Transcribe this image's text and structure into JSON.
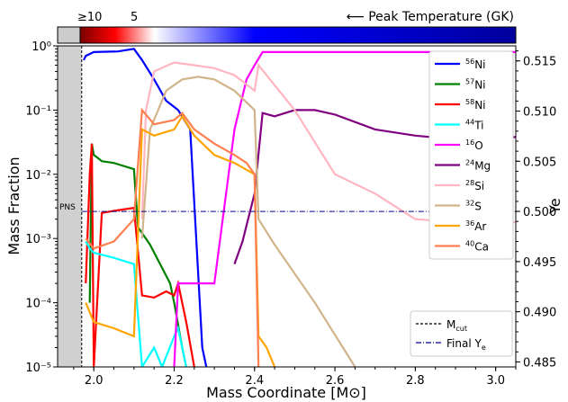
{
  "chart_data": {
    "type": "line",
    "colorbar": {
      "label_text": "⟵ Peak Temperature (GK)",
      "ticks": [
        "≥10",
        "5"
      ],
      "colors": [
        "#7a0000",
        "#ff0000",
        "#ffffff",
        "#0000ff",
        "#00009c"
      ]
    },
    "xlabel": "Mass Coordinate [M⊙]",
    "ylabel": "Mass Fraction",
    "y2label": "Ye",
    "xlim": [
      1.91,
      3.05
    ],
    "ylim": [
      1e-05,
      1
    ],
    "y2lim": [
      0.4845,
      0.5165
    ],
    "yscale": "log",
    "xticks": [
      "2.0",
      "2.2",
      "2.4",
      "2.6",
      "2.8",
      "3.0"
    ],
    "yticks": [
      "10⁻⁵",
      "10⁻⁴",
      "10⁻³",
      "10⁻²",
      "10⁻¹",
      "10⁰"
    ],
    "y2ticks": [
      "0.485",
      "0.490",
      "0.495",
      "0.500",
      "0.505",
      "0.510",
      "0.515"
    ],
    "pns_label": "PNS",
    "pns_region": [
      1.91,
      1.97
    ],
    "mcut": 1.97,
    "final_ye": 0.5,
    "legend_placement": "upper-right",
    "series": [
      {
        "name": "56Ni",
        "sup": "56",
        "el": "Ni",
        "color": "#0000ff",
        "x": [
          1.975,
          1.98,
          2.0,
          2.06,
          2.1,
          2.12,
          2.15,
          2.18,
          2.21,
          2.24,
          2.255,
          2.27,
          2.28
        ],
        "y": [
          0.6,
          0.7,
          0.8,
          0.82,
          0.9,
          0.6,
          0.3,
          0.14,
          0.1,
          0.05,
          0.001,
          2e-05,
          1e-05
        ]
      },
      {
        "name": "57Ni",
        "sup": "57",
        "el": "Ni",
        "color": "#008000",
        "x": [
          1.99,
          1.995,
          2.0,
          2.01,
          2.02,
          2.05,
          2.1,
          2.11,
          2.14,
          2.19,
          2.2,
          2.22,
          2.23
        ],
        "y": [
          0.0001,
          0.03,
          0.02,
          0.018,
          0.016,
          0.015,
          0.012,
          0.0015,
          0.0008,
          0.0002,
          0.0001,
          2e-05,
          1e-05
        ]
      },
      {
        "name": "58Ni",
        "sup": "58",
        "el": "Ni",
        "color": "#ff0000",
        "x": [
          1.98,
          1.99,
          1.995,
          2.0,
          2.02,
          2.05,
          2.1,
          2.12,
          2.15,
          2.18,
          2.2,
          2.21,
          2.23,
          2.25
        ],
        "y": [
          0.0002,
          0.01,
          0.03,
          1e-05,
          0.0025,
          0.0027,
          0.003,
          0.00013,
          0.00012,
          0.00015,
          0.00013,
          0.0002,
          5e-05,
          1e-05
        ]
      },
      {
        "name": "44Ti",
        "sup": "44",
        "el": "Ti",
        "color": "#00ffff",
        "x": [
          1.98,
          1.99,
          2.0,
          2.05,
          2.1,
          2.12,
          2.15,
          2.17,
          2.2,
          2.21,
          2.23
        ],
        "y": [
          0.0009,
          0.0007,
          0.0006,
          0.0005,
          0.0004,
          1e-05,
          2e-05,
          1e-05,
          3e-05,
          4e-05,
          1e-05
        ]
      },
      {
        "name": "16O",
        "sup": "16",
        "el": "O",
        "color": "#ff00ff",
        "x": [
          2.2,
          2.21,
          2.25,
          2.3,
          2.35,
          2.38,
          2.4,
          2.42,
          2.5,
          2.6,
          2.8,
          3.05
        ],
        "y": [
          1e-05,
          0.0002,
          0.0002,
          0.0002,
          0.05,
          0.3,
          0.5,
          0.8,
          0.8,
          0.8,
          0.8,
          0.8
        ]
      },
      {
        "name": "24Mg",
        "sup": "24",
        "el": "Mg",
        "color": "#800080",
        "x": [
          2.35,
          2.37,
          2.4,
          2.42,
          2.45,
          2.5,
          2.55,
          2.6,
          2.7,
          2.8,
          2.9,
          3.05
        ],
        "y": [
          0.0004,
          0.0009,
          0.005,
          0.09,
          0.08,
          0.1,
          0.1,
          0.085,
          0.05,
          0.04,
          0.035,
          0.038
        ]
      },
      {
        "name": "28Si",
        "sup": "28",
        "el": "Si",
        "color": "#ffb6c1",
        "x": [
          2.12,
          2.13,
          2.15,
          2.2,
          2.25,
          2.3,
          2.35,
          2.4,
          2.41,
          2.5,
          2.6,
          2.7,
          2.8,
          2.9,
          3.05
        ],
        "y": [
          0.002,
          0.1,
          0.4,
          0.55,
          0.5,
          0.45,
          0.35,
          0.2,
          0.5,
          0.1,
          0.01,
          0.005,
          0.002,
          0.0018,
          0.0018
        ]
      },
      {
        "name": "32S",
        "sup": "32",
        "el": "S",
        "color": "#d2b48c",
        "x": [
          2.12,
          2.14,
          2.18,
          2.22,
          2.26,
          2.3,
          2.35,
          2.4,
          2.41,
          2.45,
          2.55,
          2.62,
          2.65
        ],
        "y": [
          0.001,
          0.05,
          0.2,
          0.3,
          0.33,
          0.3,
          0.2,
          0.1,
          0.002,
          0.0008,
          0.0001,
          2e-05,
          1e-05
        ]
      },
      {
        "name": "36Ar",
        "sup": "36",
        "el": "Ar",
        "color": "#ffa500",
        "x": [
          1.98,
          2.0,
          2.05,
          2.1,
          2.12,
          2.15,
          2.2,
          2.22,
          2.25,
          2.3,
          2.35,
          2.4,
          2.41,
          2.43,
          2.45
        ],
        "y": [
          0.0001,
          5e-05,
          4e-05,
          3e-05,
          0.05,
          0.04,
          0.05,
          0.08,
          0.04,
          0.02,
          0.015,
          0.01,
          3e-05,
          2e-05,
          1e-05
        ]
      },
      {
        "name": "40Ca",
        "sup": "40",
        "el": "Ca",
        "color": "#ff7f50",
        "x": [
          1.98,
          2.0,
          2.05,
          2.1,
          2.12,
          2.15,
          2.2,
          2.22,
          2.25,
          2.3,
          2.35,
          2.38,
          2.4,
          2.41
        ],
        "y": [
          0.001,
          0.0007,
          0.0009,
          0.002,
          0.1,
          0.06,
          0.07,
          0.09,
          0.05,
          0.03,
          0.02,
          0.015,
          0.01,
          1e-05
        ]
      }
    ],
    "legend_lines": [
      {
        "label": "Mcut",
        "sub": "cut",
        "main": "M",
        "color": "#000000",
        "style": "dashed"
      },
      {
        "label": "Final Ye",
        "sub": "e",
        "main": "Final Y",
        "color": "#00008b",
        "style": "dashdot"
      }
    ]
  }
}
